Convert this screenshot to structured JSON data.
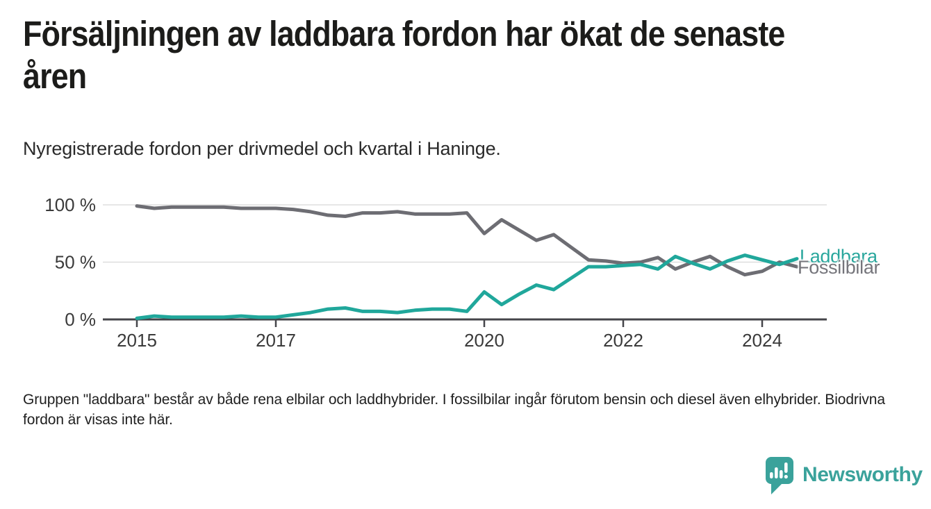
{
  "header": {
    "title": "Försäljningen av laddbara fordon har ökat de senaste åren",
    "title_line1": "Försäljningen av laddbara fordon har ökat de senaste",
    "title_line2": "åren",
    "subtitle": "Nyregistrerade fordon per drivmedel och kvartal i Haninge."
  },
  "chart_data": {
    "type": "line",
    "title": "Försäljningen av laddbara fordon har ökat de senaste åren",
    "subtitle": "Nyregistrerade fordon per drivmedel och kvartal i Haninge.",
    "unit": "%",
    "ylim": [
      0,
      100
    ],
    "grid": true,
    "legend_position": "end-of-line-labels",
    "x": [
      "2015 Q1",
      "2015 Q2",
      "2015 Q3",
      "2015 Q4",
      "2016 Q1",
      "2016 Q2",
      "2016 Q3",
      "2016 Q4",
      "2017 Q1",
      "2017 Q2",
      "2017 Q3",
      "2017 Q4",
      "2018 Q1",
      "2018 Q2",
      "2018 Q3",
      "2018 Q4",
      "2019 Q1",
      "2019 Q2",
      "2019 Q3",
      "2019 Q4",
      "2020 Q1",
      "2020 Q2",
      "2020 Q3",
      "2020 Q4",
      "2021 Q1",
      "2021 Q2",
      "2021 Q3",
      "2021 Q4",
      "2022 Q1",
      "2022 Q2",
      "2022 Q3",
      "2022 Q4",
      "2023 Q1",
      "2023 Q2",
      "2023 Q3",
      "2023 Q4",
      "2024 Q1",
      "2024 Q2",
      "2024 Q3"
    ],
    "x_ticks": [
      {
        "label": "2015",
        "index": 0
      },
      {
        "label": "2017",
        "index": 8
      },
      {
        "label": "2020",
        "index": 20
      },
      {
        "label": "2022",
        "index": 28
      },
      {
        "label": "2024",
        "index": 36
      }
    ],
    "y_ticks": [
      {
        "label": "100 %",
        "value": 100
      },
      {
        "label": "50 %",
        "value": 50
      },
      {
        "label": "0 %",
        "value": 0
      }
    ],
    "series": [
      {
        "name": "Laddbara",
        "color": "#20a79b",
        "label_color": "#2aa79d",
        "values": [
          1,
          3,
          2,
          2,
          2,
          2,
          3,
          2,
          2,
          4,
          6,
          9,
          10,
          7,
          7,
          6,
          8,
          9,
          9,
          7,
          24,
          13,
          22,
          30,
          26,
          36,
          46,
          46,
          47,
          48,
          44,
          55,
          49,
          44,
          51,
          56,
          52,
          48,
          53
        ]
      },
      {
        "name": "Fossilbilar",
        "color": "#6d6d73",
        "label_color": "#75757b",
        "values": [
          99,
          97,
          98,
          98,
          98,
          98,
          97,
          97,
          97,
          96,
          94,
          91,
          90,
          93,
          93,
          94,
          92,
          92,
          92,
          93,
          75,
          87,
          78,
          69,
          74,
          63,
          52,
          51,
          49,
          50,
          54,
          44,
          50,
          55,
          46,
          39,
          42,
          50,
          46
        ]
      }
    ]
  },
  "footnote": "Gruppen \"laddbara\" består av både rena elbilar och laddhybrider. I fossilbilar ingår förutom bensin och diesel även elhybrider. Biodrivna fordon är visas inte här.",
  "logo": {
    "text": "Newsworthy",
    "color": "#3aa29b"
  },
  "colors": {
    "accent_teal": "#20a79b",
    "line_gray": "#6d6d73",
    "grid": "#dedede",
    "axis": "#45454a",
    "background": "#ffffff"
  }
}
